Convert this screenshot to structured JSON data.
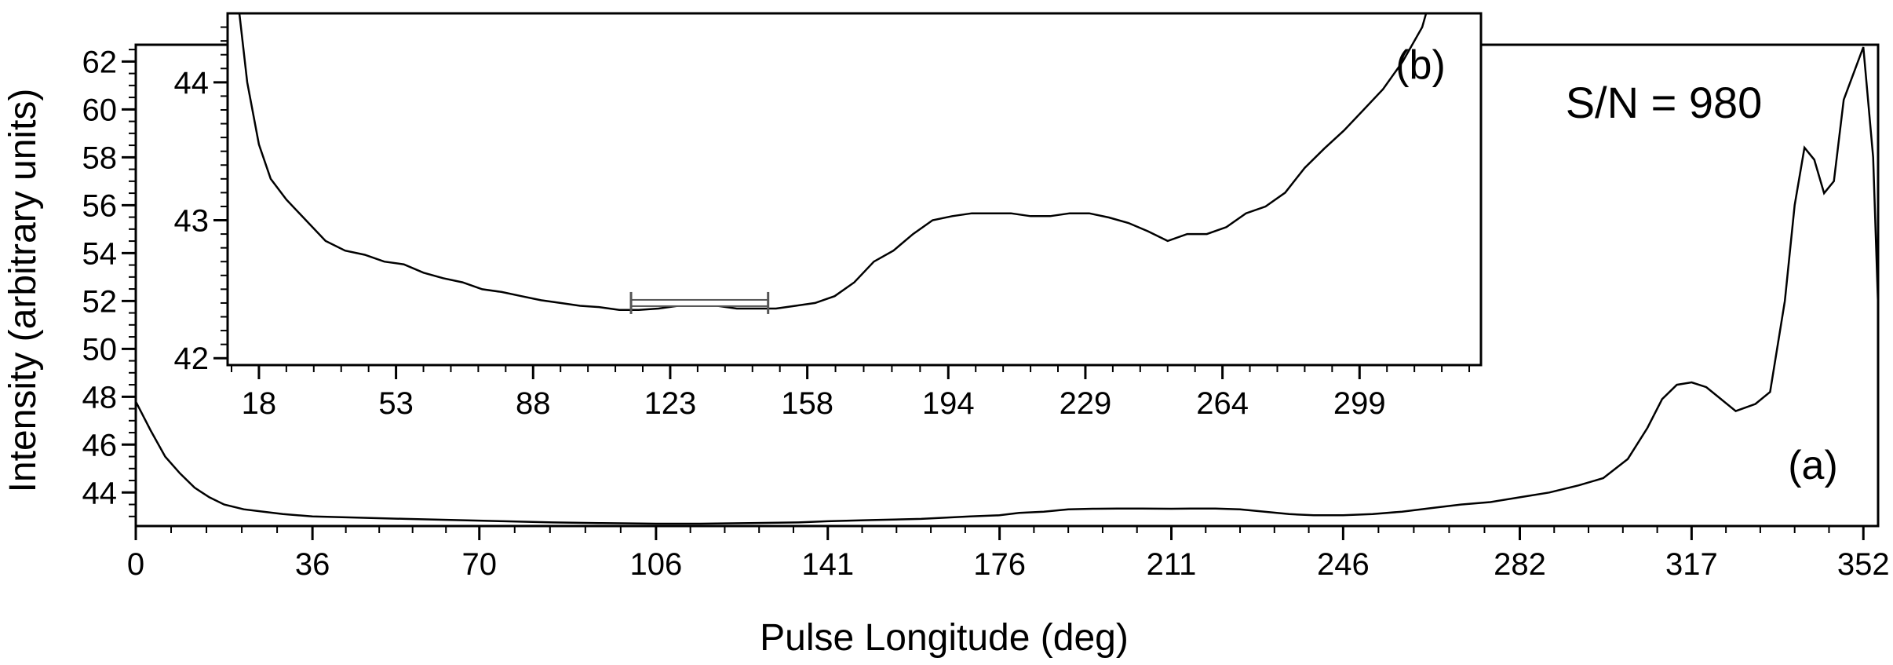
{
  "chart_data": [
    {
      "panel": "(a)",
      "type": "line",
      "xlabel": "Pulse Longitude (deg)",
      "ylabel": "Intensity (arbitrary units)",
      "xlim": [
        0,
        355
      ],
      "ylim": [
        42.6,
        62.7
      ],
      "xticks": [
        "0",
        "36",
        "70",
        "106",
        "141",
        "176",
        "211",
        "246",
        "282",
        "317",
        "352"
      ],
      "yticks": [
        "44",
        "46",
        "48",
        "50",
        "52",
        "54",
        "56",
        "58",
        "60",
        "62"
      ],
      "annotation": "S/N = 980",
      "series": [
        {
          "x": [
            0,
            3,
            6,
            9,
            12,
            15,
            18,
            22,
            26,
            30,
            36,
            45,
            55,
            65,
            75,
            85,
            95,
            106,
            115,
            125,
            135,
            141,
            150,
            160,
            170,
            176,
            180,
            185,
            190,
            195,
            200,
            205,
            211,
            215,
            220,
            225,
            230,
            235,
            240,
            246,
            252,
            258,
            264,
            270,
            276,
            282,
            288,
            294,
            299,
            304,
            308,
            311,
            314,
            317,
            320,
            323,
            326,
            330,
            333,
            336,
            338,
            340,
            342,
            344,
            346,
            348,
            350,
            352,
            354,
            355
          ],
          "y": [
            47.8,
            46.6,
            45.5,
            44.8,
            44.2,
            43.8,
            43.5,
            43.3,
            43.2,
            43.1,
            43.0,
            42.95,
            42.9,
            42.85,
            42.8,
            42.75,
            42.72,
            42.7,
            42.7,
            42.72,
            42.75,
            42.8,
            42.85,
            42.9,
            43.0,
            43.05,
            43.15,
            43.2,
            43.3,
            43.32,
            43.33,
            43.33,
            43.32,
            43.33,
            43.33,
            43.3,
            43.2,
            43.1,
            43.05,
            43.05,
            43.1,
            43.2,
            43.35,
            43.5,
            43.6,
            43.8,
            44.0,
            44.3,
            44.6,
            45.4,
            46.7,
            47.9,
            48.5,
            48.6,
            48.4,
            47.9,
            47.4,
            47.7,
            48.2,
            52.0,
            56.0,
            58.4,
            57.9,
            56.5,
            57.0,
            60.4,
            61.5,
            62.6,
            58.0,
            51.8
          ]
        }
      ]
    },
    {
      "panel": "(b)",
      "type": "line",
      "xlim": [
        10,
        330
      ],
      "ylim": [
        41.95,
        44.5
      ],
      "xticks": [
        "18",
        "53",
        "88",
        "123",
        "158",
        "194",
        "229",
        "264",
        "299"
      ],
      "yticks": [
        "42",
        "43",
        "44"
      ],
      "series": [
        {
          "x": [
            13,
            15,
            18,
            21,
            25,
            30,
            35,
            40,
            45,
            50,
            55,
            60,
            65,
            70,
            75,
            80,
            85,
            90,
            95,
            100,
            105,
            110,
            115,
            120,
            125,
            130,
            135,
            140,
            145,
            150,
            155,
            160,
            165,
            170,
            175,
            180,
            185,
            190,
            195,
            200,
            205,
            210,
            215,
            220,
            225,
            230,
            235,
            240,
            245,
            250,
            255,
            260,
            265,
            270,
            275,
            280,
            285,
            290,
            295,
            300,
            305,
            310,
            315,
            316
          ],
          "y": [
            44.5,
            44.0,
            43.55,
            43.3,
            43.15,
            43.0,
            42.85,
            42.78,
            42.75,
            42.7,
            42.68,
            42.62,
            42.58,
            42.55,
            42.5,
            42.48,
            42.45,
            42.42,
            42.4,
            42.38,
            42.37,
            42.35,
            42.35,
            42.36,
            42.38,
            42.38,
            42.38,
            42.36,
            42.36,
            42.36,
            42.38,
            42.4,
            42.45,
            42.55,
            42.7,
            42.78,
            42.9,
            43.0,
            43.03,
            43.05,
            43.05,
            43.05,
            43.03,
            43.03,
            43.05,
            43.05,
            43.02,
            42.98,
            42.92,
            42.85,
            42.9,
            42.9,
            42.95,
            43.05,
            43.1,
            43.2,
            43.38,
            43.52,
            43.65,
            43.8,
            43.95,
            44.15,
            44.4,
            44.5
          ]
        }
      ],
      "error_bar": {
        "x": [
          113,
          148
        ],
        "y": 42.4
      }
    }
  ]
}
